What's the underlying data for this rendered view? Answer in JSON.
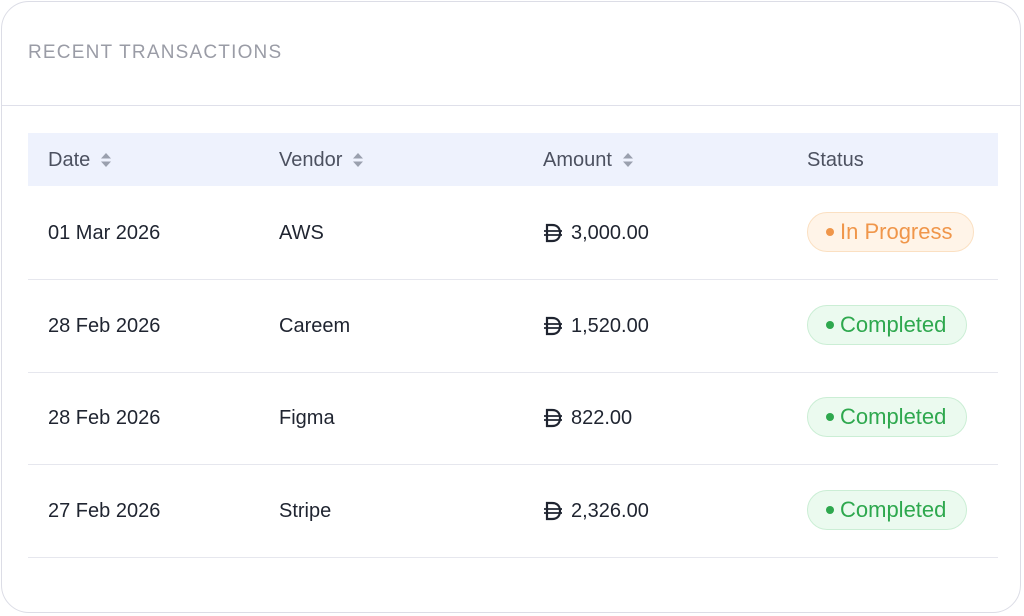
{
  "card": {
    "title": "RECENT TRANSACTIONS"
  },
  "table": {
    "columns": [
      {
        "label": "Date",
        "sortable": true
      },
      {
        "label": "Vendor",
        "sortable": true
      },
      {
        "label": "Amount",
        "sortable": true
      },
      {
        "label": "Status",
        "sortable": false
      }
    ],
    "rows": [
      {
        "date": "01 Mar 2026",
        "vendor": "AWS",
        "amount": "3,000.00",
        "status": "In Progress",
        "tone": "warning"
      },
      {
        "date": "28 Feb 2026",
        "vendor": "Careem",
        "amount": "1,520.00",
        "status": "Completed",
        "tone": "success"
      },
      {
        "date": "28 Feb 2026",
        "vendor": "Figma",
        "amount": "822.00",
        "status": "Completed",
        "tone": "success"
      },
      {
        "date": "27 Feb 2026",
        "vendor": "Stripe",
        "amount": "2,326.00",
        "status": "Completed",
        "tone": "success"
      }
    ]
  }
}
